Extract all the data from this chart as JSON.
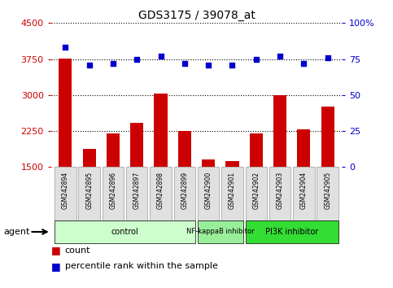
{
  "title": "GDS3175 / 39078_at",
  "samples": [
    "GSM242894",
    "GSM242895",
    "GSM242896",
    "GSM242897",
    "GSM242898",
    "GSM242899",
    "GSM242900",
    "GSM242901",
    "GSM242902",
    "GSM242903",
    "GSM242904",
    "GSM242905"
  ],
  "counts": [
    3760,
    1870,
    2200,
    2420,
    3030,
    2250,
    1660,
    1630,
    2200,
    3000,
    2280,
    2760
  ],
  "percentiles": [
    83,
    71,
    72,
    75,
    77,
    72,
    71,
    71,
    75,
    77,
    72,
    76
  ],
  "bar_color": "#cc0000",
  "dot_color": "#0000cc",
  "ylim_left": [
    1500,
    4500
  ],
  "ylim_right": [
    0,
    100
  ],
  "yticks_left": [
    1500,
    2250,
    3000,
    3750,
    4500
  ],
  "yticks_right": [
    0,
    25,
    50,
    75,
    100
  ],
  "right_tick_labels": [
    "0",
    "25",
    "50",
    "75",
    "100%"
  ],
  "group_defs": [
    {
      "label": "control",
      "start": 0,
      "end": 5,
      "color": "#ccffcc"
    },
    {
      "label": "NF-kappaB inhibitor",
      "start": 6,
      "end": 7,
      "color": "#99ee99"
    },
    {
      "label": "PI3K inhibitor",
      "start": 8,
      "end": 11,
      "color": "#33dd33"
    }
  ],
  "agent_label": "agent",
  "legend_items": [
    {
      "color": "#cc0000",
      "label": "count"
    },
    {
      "color": "#0000cc",
      "label": "percentile rank within the sample"
    }
  ],
  "left_tick_color": "#cc0000",
  "right_tick_color": "#0000cc",
  "grid_color": "black",
  "bar_bottom": 1500,
  "tick_box_color": "#e0e0e0",
  "tick_box_edge": "#999999"
}
